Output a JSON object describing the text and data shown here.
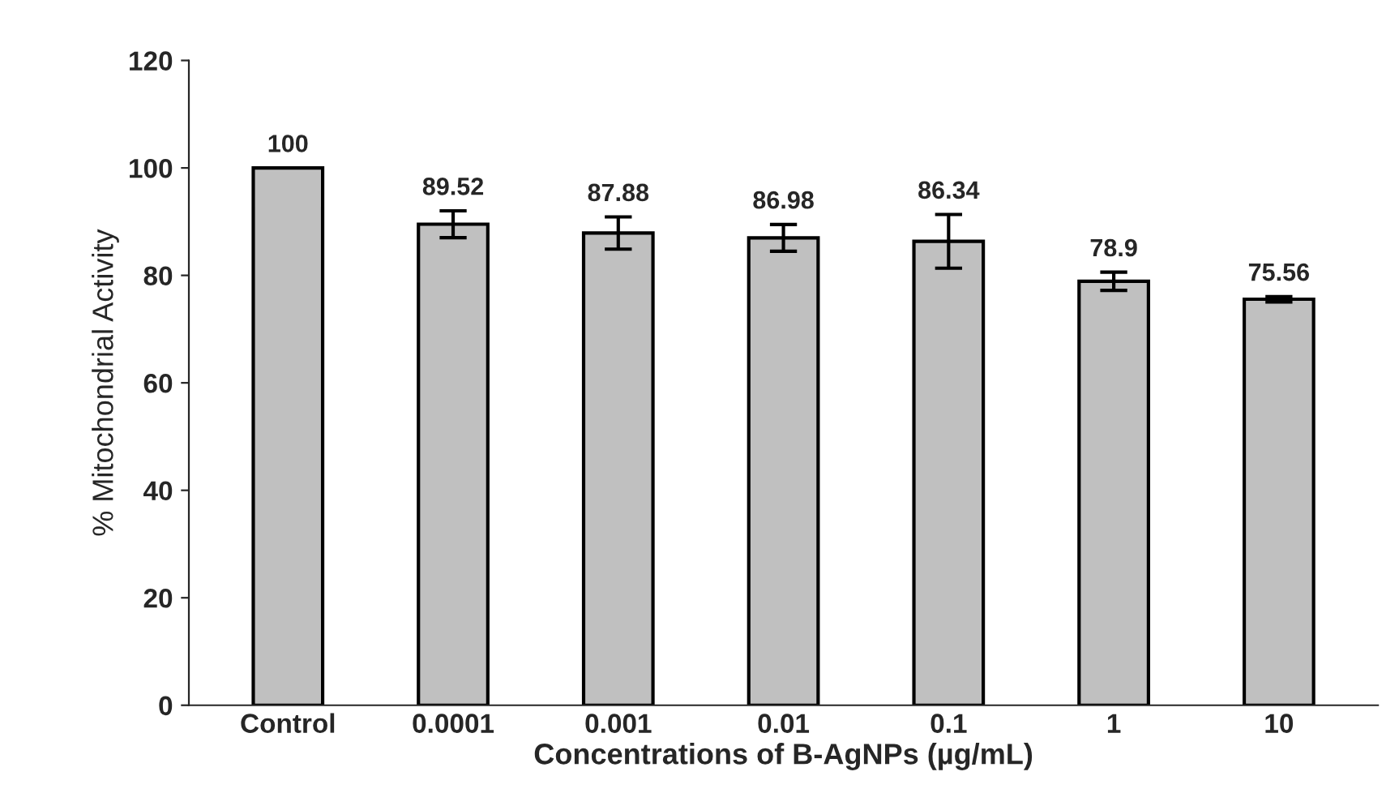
{
  "chart_data": {
    "type": "bar",
    "xlabel": "Concentrations of B-AgNPs (µg/mL)",
    "ylabel": "% Mitochondrial Activity",
    "categories": [
      "Control",
      "0.0001",
      "0.001",
      "0.01",
      "0.1",
      "1",
      "10"
    ],
    "values": [
      100,
      89.52,
      87.88,
      86.98,
      86.34,
      78.9,
      75.56
    ],
    "errors": [
      null,
      2.5,
      3,
      2.5,
      5,
      1.7,
      0.5
    ],
    "color": "#c0c0c0",
    "data_labels": true,
    "ylim": [
      0,
      120
    ],
    "yticks": [
      0,
      20,
      40,
      60,
      80,
      100,
      120
    ],
    "grid": false
  }
}
